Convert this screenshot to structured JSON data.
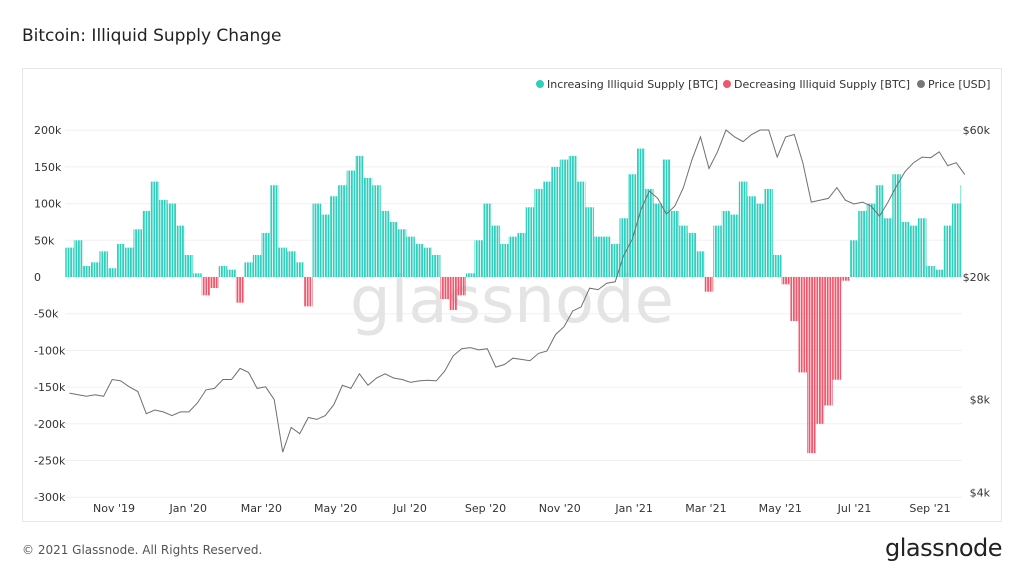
{
  "title": "Bitcoin: Illiquid Supply Change",
  "footer": {
    "copyright": "© 2021 Glassnode. All Rights Reserved.",
    "logo": "glassnode"
  },
  "watermark": "glassnode",
  "chart_data": {
    "type": "bar",
    "title": "Bitcoin: Illiquid Supply Change",
    "legend_position": "top-right",
    "grid": true,
    "legend": [
      {
        "label": "Increasing Illiquid Supply [BTC]",
        "color": "#2ecfbd"
      },
      {
        "label": "Decreasing Illiquid Supply [BTC]",
        "color": "#f0566c"
      },
      {
        "label": "Price [USD]",
        "color": "#777777"
      }
    ],
    "y_left": {
      "ticks": [
        "200k",
        "150k",
        "100k",
        "50k",
        "0",
        "-50k",
        "-100k",
        "-150k",
        "-200k",
        "-250k",
        "-300k"
      ],
      "range": [
        -300000,
        200000
      ]
    },
    "y_right": {
      "scale": "log",
      "ticks": [
        "$60k",
        "$20k",
        "$8k",
        "$4k"
      ],
      "range": [
        4000,
        60000
      ]
    },
    "x_ticks": [
      "Nov '19",
      "Jan '20",
      "Mar '20",
      "May '20",
      "Jul '20",
      "Sep '20",
      "Nov '20",
      "Jan '21",
      "Mar '21",
      "May '21",
      "Jul '21",
      "Sep '21"
    ],
    "x": [
      "2019-09-22",
      "2019-09-29",
      "2019-10-06",
      "2019-10-13",
      "2019-10-20",
      "2019-10-27",
      "2019-11-03",
      "2019-11-10",
      "2019-11-17",
      "2019-11-24",
      "2019-12-01",
      "2019-12-08",
      "2019-12-15",
      "2019-12-22",
      "2019-12-29",
      "2020-01-05",
      "2020-01-12",
      "2020-01-19",
      "2020-01-26",
      "2020-02-02",
      "2020-02-09",
      "2020-02-16",
      "2020-02-23",
      "2020-03-01",
      "2020-03-08",
      "2020-03-15",
      "2020-03-22",
      "2020-03-29",
      "2020-04-05",
      "2020-04-12",
      "2020-04-19",
      "2020-04-26",
      "2020-05-03",
      "2020-05-10",
      "2020-05-17",
      "2020-05-24",
      "2020-05-31",
      "2020-06-07",
      "2020-06-14",
      "2020-06-21",
      "2020-06-28",
      "2020-07-05",
      "2020-07-12",
      "2020-07-19",
      "2020-07-26",
      "2020-08-02",
      "2020-08-09",
      "2020-08-16",
      "2020-08-23",
      "2020-08-30",
      "2020-09-06",
      "2020-09-13",
      "2020-09-20",
      "2020-09-27",
      "2020-10-04",
      "2020-10-11",
      "2020-10-18",
      "2020-10-25",
      "2020-11-01",
      "2020-11-08",
      "2020-11-15",
      "2020-11-22",
      "2020-11-29",
      "2020-12-06",
      "2020-12-13",
      "2020-12-20",
      "2020-12-27",
      "2021-01-03",
      "2021-01-10",
      "2021-01-17",
      "2021-01-24",
      "2021-01-31",
      "2021-02-07",
      "2021-02-14",
      "2021-02-21",
      "2021-02-28",
      "2021-03-07",
      "2021-03-14",
      "2021-03-21",
      "2021-03-28",
      "2021-04-04",
      "2021-04-11",
      "2021-04-18",
      "2021-04-25",
      "2021-05-02",
      "2021-05-09",
      "2021-05-16",
      "2021-05-23",
      "2021-05-30",
      "2021-06-06",
      "2021-06-13",
      "2021-06-20",
      "2021-06-27",
      "2021-07-04",
      "2021-07-11",
      "2021-07-18",
      "2021-07-25",
      "2021-08-01",
      "2021-08-08",
      "2021-08-15",
      "2021-08-22",
      "2021-08-29",
      "2021-09-05",
      "2021-09-12",
      "2021-09-19",
      "2021-09-26"
    ],
    "series": [
      {
        "name": "Illiquid Supply Change [BTC]",
        "values": [
          40000,
          50000,
          15000,
          20000,
          35000,
          12000,
          45000,
          40000,
          65000,
          90000,
          130000,
          105000,
          100000,
          70000,
          30000,
          5000,
          -25000,
          -15000,
          15000,
          10000,
          -35000,
          20000,
          30000,
          60000,
          125000,
          40000,
          35000,
          20000,
          -40000,
          100000,
          85000,
          110000,
          125000,
          145000,
          165000,
          135000,
          125000,
          90000,
          75000,
          65000,
          55000,
          45000,
          40000,
          30000,
          -30000,
          -45000,
          -25000,
          5000,
          50000,
          100000,
          70000,
          45000,
          55000,
          60000,
          95000,
          120000,
          130000,
          150000,
          160000,
          165000,
          130000,
          95000,
          55000,
          55000,
          45000,
          80000,
          140000,
          175000,
          120000,
          100000,
          160000,
          90000,
          70000,
          60000,
          35000,
          -20000,
          70000,
          90000,
          85000,
          130000,
          110000,
          100000,
          120000,
          30000,
          -10000,
          -60000,
          -130000,
          -240000,
          -200000,
          -175000,
          -140000,
          -5000,
          50000,
          90000,
          100000,
          125000,
          80000,
          140000,
          75000,
          70000,
          80000,
          15000,
          10000,
          70000,
          100000,
          125000
        ]
      },
      {
        "name": "Price [USD]",
        "values": [
          8400,
          8300,
          8200,
          8300,
          8200,
          9300,
          9200,
          8800,
          8500,
          7200,
          7400,
          7300,
          7100,
          7300,
          7300,
          7800,
          8600,
          8700,
          9300,
          9300,
          10100,
          9800,
          8700,
          8800,
          8000,
          5400,
          6500,
          6200,
          7000,
          6900,
          7100,
          7700,
          8900,
          8700,
          9700,
          8900,
          9400,
          9700,
          9400,
          9300,
          9100,
          9200,
          9250,
          9200,
          9900,
          11100,
          11700,
          11800,
          11600,
          11700,
          10200,
          10400,
          10900,
          10800,
          10700,
          11300,
          11500,
          13000,
          13800,
          15500,
          16000,
          18400,
          18200,
          19100,
          19300,
          23500,
          26500,
          33000,
          38000,
          36000,
          32000,
          34000,
          39000,
          48000,
          57000,
          45000,
          51000,
          60000,
          57000,
          55000,
          58000,
          60000,
          60000,
          49000,
          57000,
          58000,
          47000,
          35000,
          35500,
          36000,
          39000,
          35500,
          34500,
          35000,
          34000,
          31500,
          35000,
          39500,
          44000,
          47000,
          49000,
          48800,
          51000,
          46000,
          47000,
          43000
        ]
      }
    ]
  }
}
